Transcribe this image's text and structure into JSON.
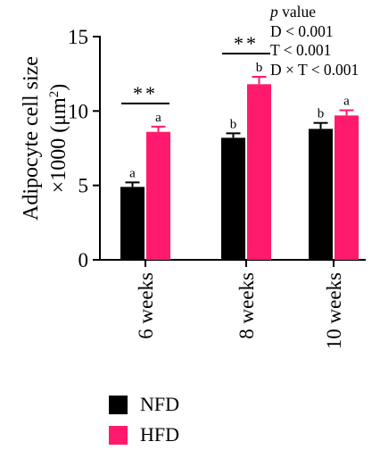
{
  "chart_data": {
    "type": "bar",
    "ylabel_line1": "Adipocyte cell size",
    "ylabel_line2_prefix": "×1000 (μm",
    "ylabel_line2_sup": "2",
    "ylabel_line2_suffix": ")",
    "ylim": [
      0,
      15
    ],
    "yticks": [
      "0",
      "5",
      "10",
      "15"
    ],
    "categories": [
      "6 weeks",
      "8 weeks",
      "10 weeks"
    ],
    "series": [
      {
        "name": "NFD",
        "color": "#000000",
        "values": [
          4.9,
          8.2,
          8.8
        ],
        "errors": [
          0.3,
          0.3,
          0.4
        ],
        "letters": [
          "a",
          "b",
          "b"
        ]
      },
      {
        "name": "HFD",
        "color": "#ff1a6e",
        "values": [
          8.6,
          11.8,
          9.7
        ],
        "errors": [
          0.35,
          0.5,
          0.35
        ],
        "letters": [
          "a",
          "b",
          "a"
        ]
      }
    ],
    "significance": [
      "**",
      "**",
      ""
    ],
    "stats": {
      "header_italic": "p",
      "header_rest": " value",
      "lines": [
        "D < 0.001",
        "T < 0.001",
        "D × T < 0.001"
      ]
    }
  }
}
